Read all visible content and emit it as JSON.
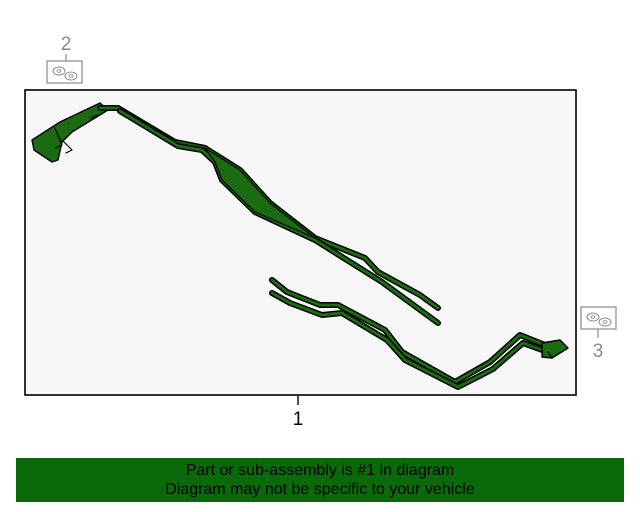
{
  "callouts": {
    "main": "1",
    "top_left": "2",
    "right": "3"
  },
  "banner": {
    "line1": "Part or sub-assembly is #1 in diagram",
    "line2": "Diagram may not be specific to your vehicle"
  },
  "colors": {
    "tube_fill": "#1c6b12",
    "tube_outline": "#000000",
    "panel_fill": "#f7f7f7",
    "banner_bg": "#0a6a0a",
    "callout_gray": "#8a8a8a"
  }
}
